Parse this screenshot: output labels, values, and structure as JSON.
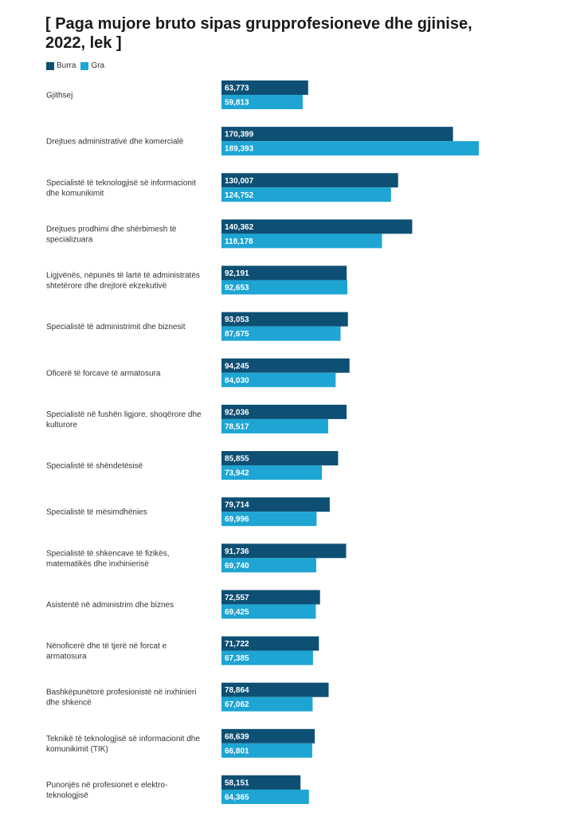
{
  "chart_data": {
    "type": "bar",
    "orientation": "horizontal",
    "title": "[ Paga mujore bruto sipas grupprofesioneve dhe gjinise, 2022, lek ]",
    "title_lines": [
      "[ Paga mujore bruto sipas grupprofesioneve dhe gjinise,",
      "2022, lek ]"
    ],
    "categories": [
      "Gjithsej",
      "Drejtues administrativë dhe komercialë",
      "Specialistë të teknologjisë së informacionit dhe komunikimit",
      "Drejtues prodhimi dhe shërbimesh të specializuara",
      "Ligjvënës, nëpunës të lartë të administratës shtetërore dhe drejtorë ekzekutivë",
      "Specialistë të administrimit dhe biznesit",
      "Oficerë të forcave të armatosura",
      "Specialistë në fushën ligjore, shoqërore dhe kulturore",
      "Specialistë të shëndetësisë",
      "Specialistë të mësimdhënies",
      "Specialistë të shkencave të fizikës, matematikës dhe inxhinierisë",
      "Asistentë në administrim dhe biznes",
      "Nënoficerë dhe të tjerë në forcat e armatosura",
      "Bashkëpunëtorë profesionistë në inxhinieri dhe shkencë",
      "Teknikë të teknologjisë së informacionit dhe komunikimit (TIK)",
      "Punonjës në profesionet e elektro-teknologjisë"
    ],
    "category_lines": [
      [
        "Gjithsej"
      ],
      [
        "Drejtues administrativë dhe komercialë"
      ],
      [
        "Specialistë të teknologjisë së informacionit",
        "dhe komunikimit"
      ],
      [
        "Drejtues prodhimi dhe shërbimesh të",
        "specializuara"
      ],
      [
        "Ligjvënës, nëpunës të lartë të administratës",
        "shtetërore dhe drejtorë ekzekutivë"
      ],
      [
        "Specialistë të administrimit dhe biznesit"
      ],
      [
        "Oficerë të forcave të armatosura"
      ],
      [
        "Specialistë në fushën ligjore, shoqërore dhe",
        "kulturore"
      ],
      [
        "Specialistë të shëndetësisë"
      ],
      [
        "Specialistë të mësimdhënies"
      ],
      [
        "Specialistë të shkencave të fizikës,",
        "matematikës dhe inxhinierisë"
      ],
      [
        "Asistentë në administrim dhe biznes"
      ],
      [
        "Nënoficerë dhe të tjerë në forcat e",
        "armatosura"
      ],
      [
        "Bashkëpunëtorë profesionistë në inxhinieri",
        "dhe shkencë"
      ],
      [
        "Teknikë të teknologjisë së informacionit dhe",
        "komunikimit (TIK)"
      ],
      [
        "Punonjës në profesionet e elektro-",
        "teknologjisë"
      ]
    ],
    "series": [
      {
        "name": "Burra",
        "color": "#0e5074",
        "values": [
          63773,
          170399,
          130007,
          140362,
          92191,
          93053,
          94245,
          92036,
          85855,
          79714,
          91736,
          72557,
          71722,
          78864,
          68639,
          58151
        ],
        "labels": [
          "63,773",
          "170,399",
          "130,007",
          "140,362",
          "92,191",
          "93,053",
          "94,245",
          "92,036",
          "85,855",
          "79,714",
          "91,736",
          "72,557",
          "71,722",
          "78,864",
          "68,639",
          "58,151"
        ]
      },
      {
        "name": "Gra",
        "color": "#1ea5d3",
        "values": [
          59813,
          189393,
          124752,
          118178,
          92653,
          87675,
          84030,
          78517,
          73942,
          69996,
          69740,
          69425,
          67385,
          67062,
          66801,
          64365
        ],
        "labels": [
          "59,813",
          "189,393",
          "124,752",
          "118,178",
          "92,653",
          "87,675",
          "84,030",
          "78,517",
          "73,942",
          "69,996",
          "69,740",
          "69,425",
          "67,385",
          "67,062",
          "66,801",
          "64,365"
        ]
      }
    ],
    "xlim": [
      0,
      189393
    ],
    "legend_position": "top-left",
    "grid": false,
    "label_color": "#ffffff"
  }
}
